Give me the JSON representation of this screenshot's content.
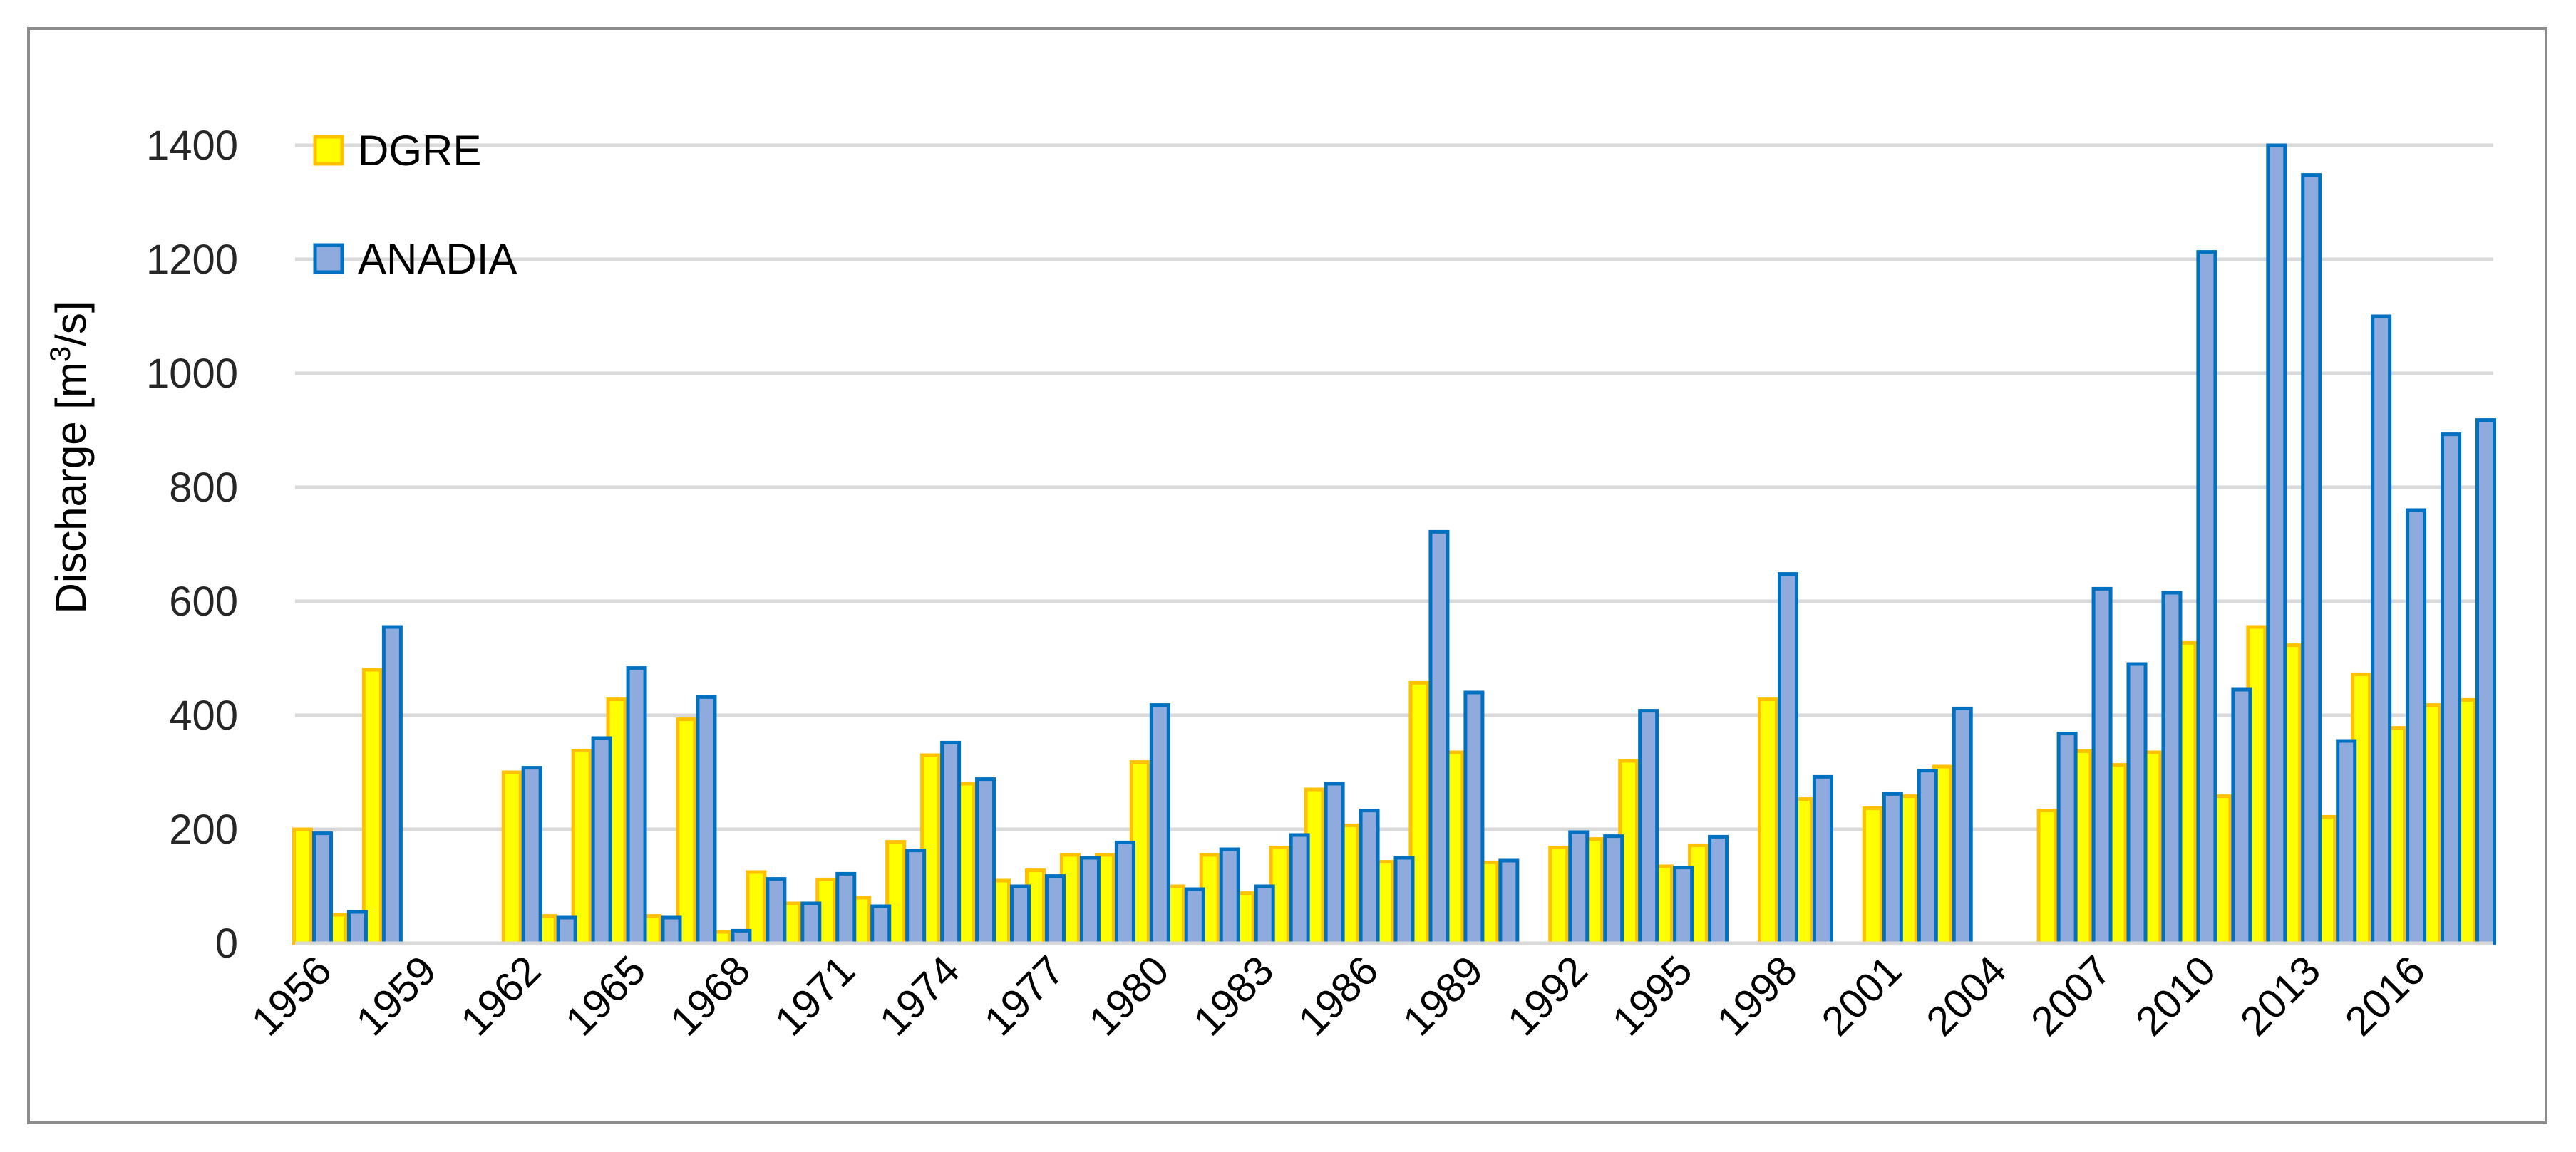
{
  "chart_data": {
    "type": "bar",
    "ylabel_main": "Discharge  [m",
    "ylabel_sup": "3",
    "ylabel_tail": "/s]",
    "ylim": [
      0,
      1400
    ],
    "yticks": [
      0,
      200,
      400,
      600,
      800,
      1000,
      1200,
      1400
    ],
    "grid": true,
    "legend_position": "top-left",
    "x": [
      1956,
      1957,
      1958,
      1959,
      1960,
      1961,
      1962,
      1963,
      1964,
      1965,
      1966,
      1967,
      1968,
      1969,
      1970,
      1971,
      1972,
      1973,
      1974,
      1975,
      1976,
      1977,
      1978,
      1979,
      1980,
      1981,
      1982,
      1983,
      1984,
      1985,
      1986,
      1987,
      1988,
      1989,
      1990,
      1991,
      1992,
      1993,
      1994,
      1995,
      1996,
      1997,
      1998,
      1999,
      2000,
      2001,
      2002,
      2003,
      2004,
      2005,
      2006,
      2007,
      2008,
      2009,
      2010,
      2011,
      2012,
      2013,
      2014,
      2015,
      2016,
      2017,
      2018
    ],
    "xtick_labels": [
      1956,
      1959,
      1962,
      1965,
      1968,
      1971,
      1974,
      1977,
      1980,
      1983,
      1986,
      1989,
      1992,
      1995,
      1998,
      2001,
      2004,
      2007,
      2010,
      2013,
      2016
    ],
    "series": [
      {
        "name": "DGRE",
        "color": "#ffff00",
        "stroke": "#ffc000",
        "values": [
          200,
          50,
          480,
          null,
          null,
          null,
          300,
          48,
          338,
          428,
          48,
          393,
          20,
          125,
          70,
          112,
          80,
          178,
          330,
          280,
          110,
          128,
          155,
          155,
          318,
          100,
          155,
          88,
          168,
          270,
          207,
          143,
          457,
          335,
          142,
          null,
          168,
          183,
          320,
          135,
          172,
          null,
          428,
          253,
          null,
          237,
          258,
          310,
          null,
          null,
          233,
          337,
          313,
          335,
          527,
          258,
          555,
          523,
          222,
          472,
          378,
          418,
          427
        ]
      },
      {
        "name": "ANADIA",
        "color": "#8faadc",
        "stroke": "#0070c0",
        "values": [
          193,
          55,
          555,
          null,
          null,
          null,
          308,
          45,
          360,
          483,
          45,
          432,
          22,
          113,
          70,
          122,
          65,
          163,
          352,
          288,
          100,
          118,
          150,
          177,
          418,
          95,
          165,
          100,
          190,
          280,
          233,
          150,
          722,
          440,
          145,
          null,
          195,
          188,
          408,
          133,
          187,
          null,
          648,
          292,
          null,
          262,
          303,
          412,
          null,
          null,
          368,
          622,
          490,
          615,
          1213,
          445,
          1400,
          1348,
          355,
          1100,
          760,
          893,
          918
        ]
      }
    ]
  }
}
